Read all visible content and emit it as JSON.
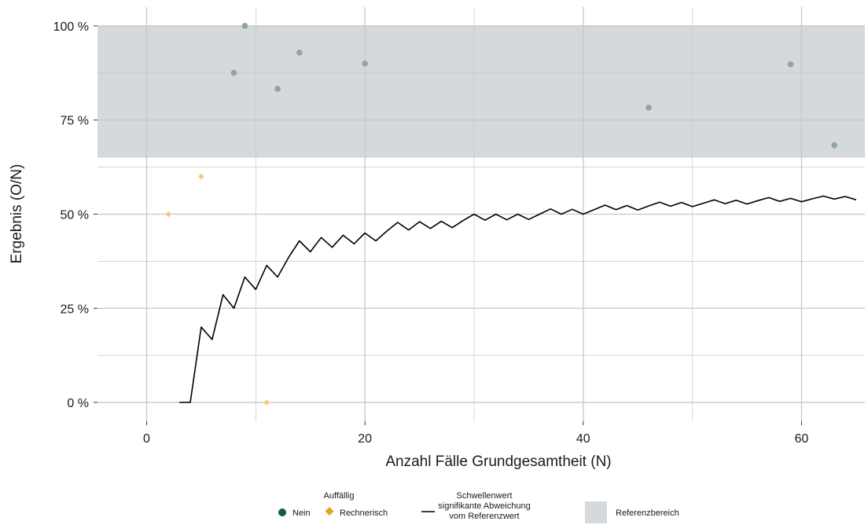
{
  "chart_data": {
    "type": "scatter",
    "xlabel": "Anzahl Fälle Grundgesamtheit (N)",
    "ylabel": "Ergebnis (O/N)",
    "xlim": [
      -4.5,
      65.8
    ],
    "ylim": [
      -0.05,
      1.05
    ],
    "x_ticks": [
      0,
      20,
      40,
      60
    ],
    "x_tick_labels": [
      "0",
      "20",
      "40",
      "60"
    ],
    "y_ticks": [
      0,
      0.25,
      0.5,
      0.75,
      1.0
    ],
    "y_tick_labels": [
      "0 %",
      "25 %",
      "50 %",
      "75 %",
      "100 %"
    ],
    "grid": true,
    "reference_range": {
      "min": 0.65,
      "max": 1.0,
      "color": "#d5d9dd"
    },
    "series": [
      {
        "name": "Nein",
        "marker": "circle",
        "color": "#8aa89e",
        "x": [
          8,
          9,
          12,
          14,
          20,
          46,
          59,
          63
        ],
        "y": [
          0.875,
          1.0,
          0.833,
          0.929,
          0.9,
          0.783,
          0.898,
          0.683
        ]
      },
      {
        "name": "Rechnerisch",
        "marker": "diamond",
        "color": "#f5c877",
        "x": [
          2,
          5,
          11
        ],
        "y": [
          0.5,
          0.6,
          0.0
        ]
      }
    ],
    "threshold": {
      "color": "#000000",
      "x": [
        3,
        4,
        5,
        6,
        7,
        8,
        9,
        10,
        11,
        12,
        13,
        14,
        15,
        16,
        17,
        18,
        19,
        20,
        21,
        22,
        23,
        24,
        25,
        26,
        27,
        28,
        29,
        30,
        31,
        32,
        33,
        34,
        35,
        36,
        37,
        38,
        39,
        40,
        41,
        42,
        43,
        44,
        45,
        46,
        47,
        48,
        49,
        50,
        51,
        52,
        53,
        54,
        55,
        56,
        57,
        58,
        59,
        60,
        61,
        62,
        63,
        64,
        65
      ],
      "y": [
        0,
        0,
        0.2,
        0.167,
        0.286,
        0.25,
        0.333,
        0.3,
        0.364,
        0.333,
        0.385,
        0.429,
        0.4,
        0.438,
        0.412,
        0.444,
        0.421,
        0.45,
        0.429,
        0.455,
        0.478,
        0.458,
        0.48,
        0.462,
        0.481,
        0.464,
        0.483,
        0.5,
        0.484,
        0.5,
        0.485,
        0.5,
        0.486,
        0.5,
        0.514,
        0.5,
        0.513,
        0.5,
        0.512,
        0.524,
        0.512,
        0.523,
        0.511,
        0.522,
        0.532,
        0.521,
        0.531,
        0.52,
        0.529,
        0.538,
        0.528,
        0.537,
        0.527,
        0.536,
        0.544,
        0.534,
        0.542,
        0.533,
        0.541,
        0.548,
        0.54,
        0.547,
        0.538
      ]
    }
  },
  "legend": {
    "auffaellig_title": "Auffällig",
    "nein_label": "Nein",
    "rechnerisch_label": "Rechnerisch",
    "threshold_title": "Schwellenwert",
    "threshold_line1": "signifikante Abweichung",
    "threshold_line2": "vom Referenzwert",
    "reference_label": "Referenzbereich",
    "nein_color": "#14574e",
    "rechnerisch_color": "#e8a317"
  }
}
